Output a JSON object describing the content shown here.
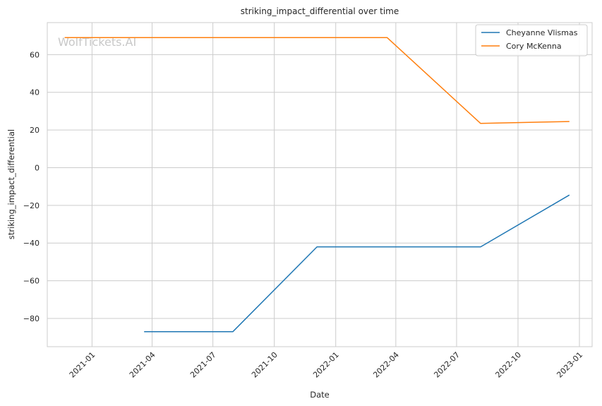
{
  "watermark": "WolfTickets.AI",
  "chart_data": {
    "type": "line",
    "title": "striking_impact_differential over time",
    "xlabel": "Date",
    "ylabel": "striking_impact_differential",
    "xlim": [
      "2020-10-26",
      "2023-01-20"
    ],
    "ylim": [
      -95,
      77
    ],
    "x_ticks": [
      "2021-01",
      "2021-04",
      "2021-07",
      "2021-10",
      "2022-01",
      "2022-04",
      "2022-07",
      "2022-10",
      "2023-01"
    ],
    "y_ticks": [
      -80,
      -60,
      -40,
      -20,
      0,
      20,
      40,
      60
    ],
    "y_tick_labels": [
      "−80",
      "−60",
      "−40",
      "−20",
      "0",
      "20",
      "40",
      "60"
    ],
    "grid": true,
    "legend_position": "top-right",
    "series": [
      {
        "name": "Cheyanne Vlismas",
        "color": "#1f77b4",
        "x": [
          "2021-03-20",
          "2021-07-31",
          "2021-12-04",
          "2022-08-06",
          "2022-12-17"
        ],
        "y": [
          -87,
          -87,
          -42,
          -42,
          -14.5
        ]
      },
      {
        "name": "Cory McKenna",
        "color": "#ff7f0e",
        "x": [
          "2020-11-21",
          "2022-03-19",
          "2022-08-06",
          "2022-12-17"
        ],
        "y": [
          69,
          69,
          23.5,
          24.5
        ]
      }
    ]
  }
}
